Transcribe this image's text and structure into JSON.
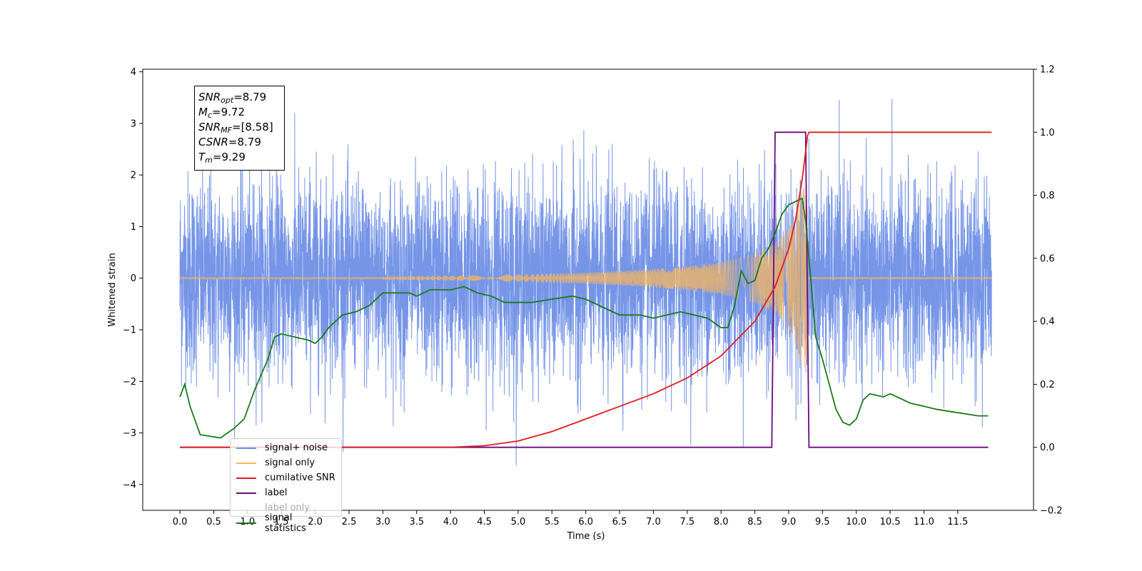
{
  "chart_data": {
    "type": "line",
    "xlabel": "Time (s)",
    "ylabel": "Whitened strain",
    "xlim": [
      -0.55,
      12.62
    ],
    "ylim": [
      -4.5,
      4.05
    ],
    "y2lim": [
      -0.2,
      1.2
    ],
    "x_ticks": [
      "0.0",
      "0.5",
      "1.0",
      "1.5",
      "2.0",
      "2.5",
      "3.0",
      "3.5",
      "4.0",
      "4.5",
      "5.0",
      "5.5",
      "6.0",
      "6.5",
      "7.0",
      "7.5",
      "8.0",
      "8.5",
      "9.0",
      "9.5",
      "10.0",
      "10.5",
      "11.0",
      "11.5"
    ],
    "y_ticks": [
      "4",
      "3",
      "2",
      "1",
      "0",
      "−1",
      "−2",
      "−3",
      "−4"
    ],
    "y2_ticks": [
      "1.2",
      "1.0",
      "0.8",
      "0.6",
      "0.4",
      "0.2",
      "0.0",
      "−0.2"
    ],
    "legend": [
      "signal+ noise",
      "signal only",
      "cumilative SNR",
      "label",
      "label only",
      "signal statistics"
    ],
    "legend_placement": "lower-left",
    "grid": false,
    "colors": {
      "signal_noise": "#6f8fe6",
      "signal_only": "#f5b65f",
      "cumulative_snr": "#e41a1c",
      "label": "#6a0a80",
      "signal_statistics": "#1a7a1a"
    },
    "series": [
      {
        "name": "signal+ noise",
        "axis": "left",
        "x_range": [
          0.0,
          12.0
        ],
        "y_range": [
          -4.1,
          3.7
        ]
      },
      {
        "name": "signal only",
        "axis": "left",
        "x_range": [
          0.0,
          12.0
        ],
        "y_range": [
          -1.8,
          1.8
        ]
      },
      {
        "name": "cumilative SNR",
        "axis": "right",
        "x": [
          0.0,
          4.0,
          4.5,
          5.0,
          5.5,
          6.0,
          6.5,
          7.0,
          7.5,
          8.0,
          8.5,
          8.8,
          9.0,
          9.1,
          9.2,
          9.28,
          9.3,
          12.0
        ],
        "y": [
          0.0,
          0.0,
          0.005,
          0.02,
          0.05,
          0.09,
          0.13,
          0.17,
          0.22,
          0.29,
          0.4,
          0.51,
          0.63,
          0.72,
          0.85,
          0.99,
          1.0,
          1.0
        ]
      },
      {
        "name": "label",
        "axis": "right",
        "x": [
          0.0,
          8.75,
          8.8,
          9.25,
          9.3,
          11.95
        ],
        "y": [
          0.0,
          0.0,
          1.0,
          1.0,
          0.0,
          0.0
        ]
      },
      {
        "name": "signal statistics",
        "axis": "right",
        "x": [
          0.0,
          0.07,
          0.15,
          0.3,
          0.6,
          0.8,
          0.95,
          1.1,
          1.3,
          1.4,
          1.5,
          1.7,
          1.9,
          2.0,
          2.1,
          2.2,
          2.4,
          2.6,
          2.8,
          3.0,
          3.2,
          3.4,
          3.5,
          3.7,
          4.0,
          4.2,
          4.4,
          4.6,
          4.8,
          5.0,
          5.2,
          5.5,
          5.8,
          6.0,
          6.3,
          6.5,
          6.8,
          7.0,
          7.2,
          7.4,
          7.6,
          7.8,
          8.0,
          8.1,
          8.2,
          8.3,
          8.4,
          8.5,
          8.6,
          8.7,
          8.8,
          8.9,
          9.0,
          9.1,
          9.2,
          9.25,
          9.3,
          9.4,
          9.5,
          9.6,
          9.7,
          9.8,
          9.9,
          10.0,
          10.1,
          10.2,
          10.4,
          10.5,
          10.6,
          10.8,
          11.0,
          11.2,
          11.5,
          11.8,
          11.95
        ],
        "y": [
          0.16,
          0.2,
          0.13,
          0.04,
          0.03,
          0.06,
          0.09,
          0.18,
          0.28,
          0.35,
          0.36,
          0.35,
          0.34,
          0.33,
          0.35,
          0.38,
          0.42,
          0.43,
          0.45,
          0.49,
          0.49,
          0.49,
          0.48,
          0.5,
          0.5,
          0.51,
          0.49,
          0.48,
          0.46,
          0.46,
          0.46,
          0.47,
          0.48,
          0.47,
          0.44,
          0.42,
          0.42,
          0.41,
          0.42,
          0.43,
          0.42,
          0.41,
          0.38,
          0.38,
          0.45,
          0.56,
          0.52,
          0.53,
          0.6,
          0.63,
          0.68,
          0.74,
          0.77,
          0.78,
          0.79,
          0.72,
          0.6,
          0.35,
          0.28,
          0.2,
          0.12,
          0.08,
          0.07,
          0.09,
          0.15,
          0.17,
          0.16,
          0.17,
          0.16,
          0.14,
          0.13,
          0.12,
          0.11,
          0.1,
          0.1
        ]
      }
    ]
  },
  "stats_box": [
    {
      "base": "SNR",
      "sub": "opt",
      "value": "=8.79"
    },
    {
      "base": "M",
      "sub": "c",
      "value": "=9.72"
    },
    {
      "base": "SNR",
      "sub": "MF",
      "value": "=[8.58]"
    },
    {
      "base": "CSNR",
      "sub": "",
      "value": "=8.79"
    },
    {
      "base": "T",
      "sub": "m",
      "value": "=9.29"
    }
  ]
}
